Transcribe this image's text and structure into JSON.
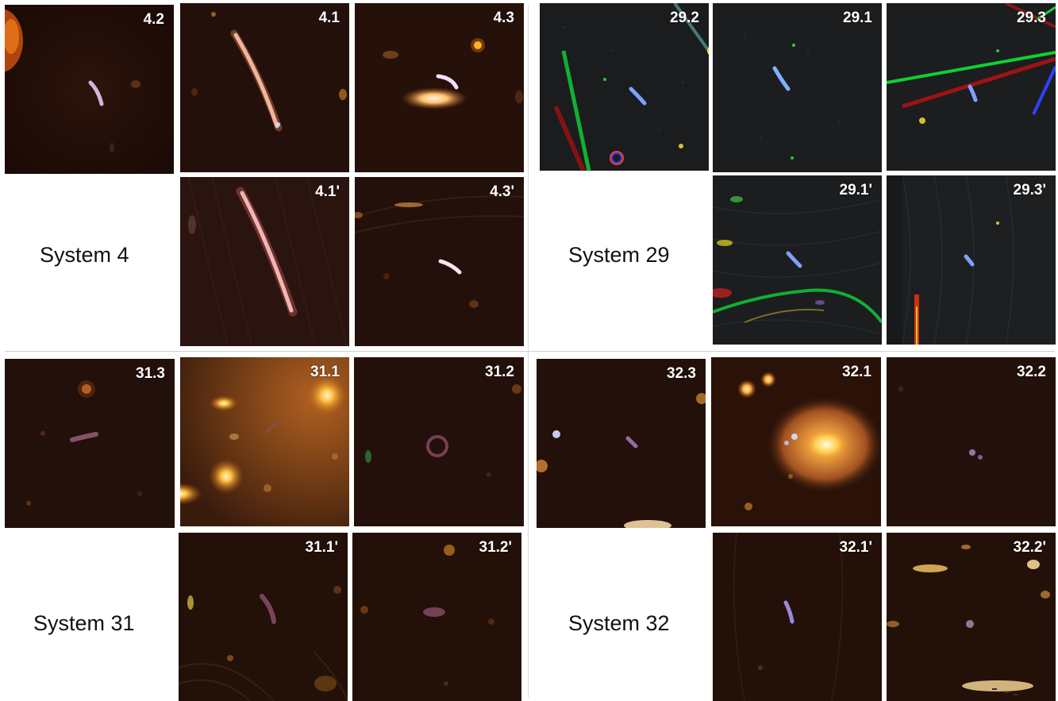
{
  "systems": [
    {
      "label": "System 4",
      "panels": [
        {
          "label": "4.2"
        },
        {
          "label": "4.1"
        },
        {
          "label": "4.3"
        },
        {
          "label": "4.1'"
        },
        {
          "label": "4.3'"
        }
      ]
    },
    {
      "label": "System 29",
      "panels": [
        {
          "label": "29.2"
        },
        {
          "label": "29.1"
        },
        {
          "label": "29.3"
        },
        {
          "label": "29.1'"
        },
        {
          "label": "29.3'"
        }
      ]
    },
    {
      "label": "System 31",
      "panels": [
        {
          "label": "31.3"
        },
        {
          "label": "31.1"
        },
        {
          "label": "31.2"
        },
        {
          "label": "31.1'"
        },
        {
          "label": "31.2'"
        }
      ]
    },
    {
      "label": "System 32",
      "panels": [
        {
          "label": "32.3"
        },
        {
          "label": "32.1"
        },
        {
          "label": "32.2"
        },
        {
          "label": "32.1'"
        },
        {
          "label": "32.2'"
        }
      ]
    }
  ]
}
